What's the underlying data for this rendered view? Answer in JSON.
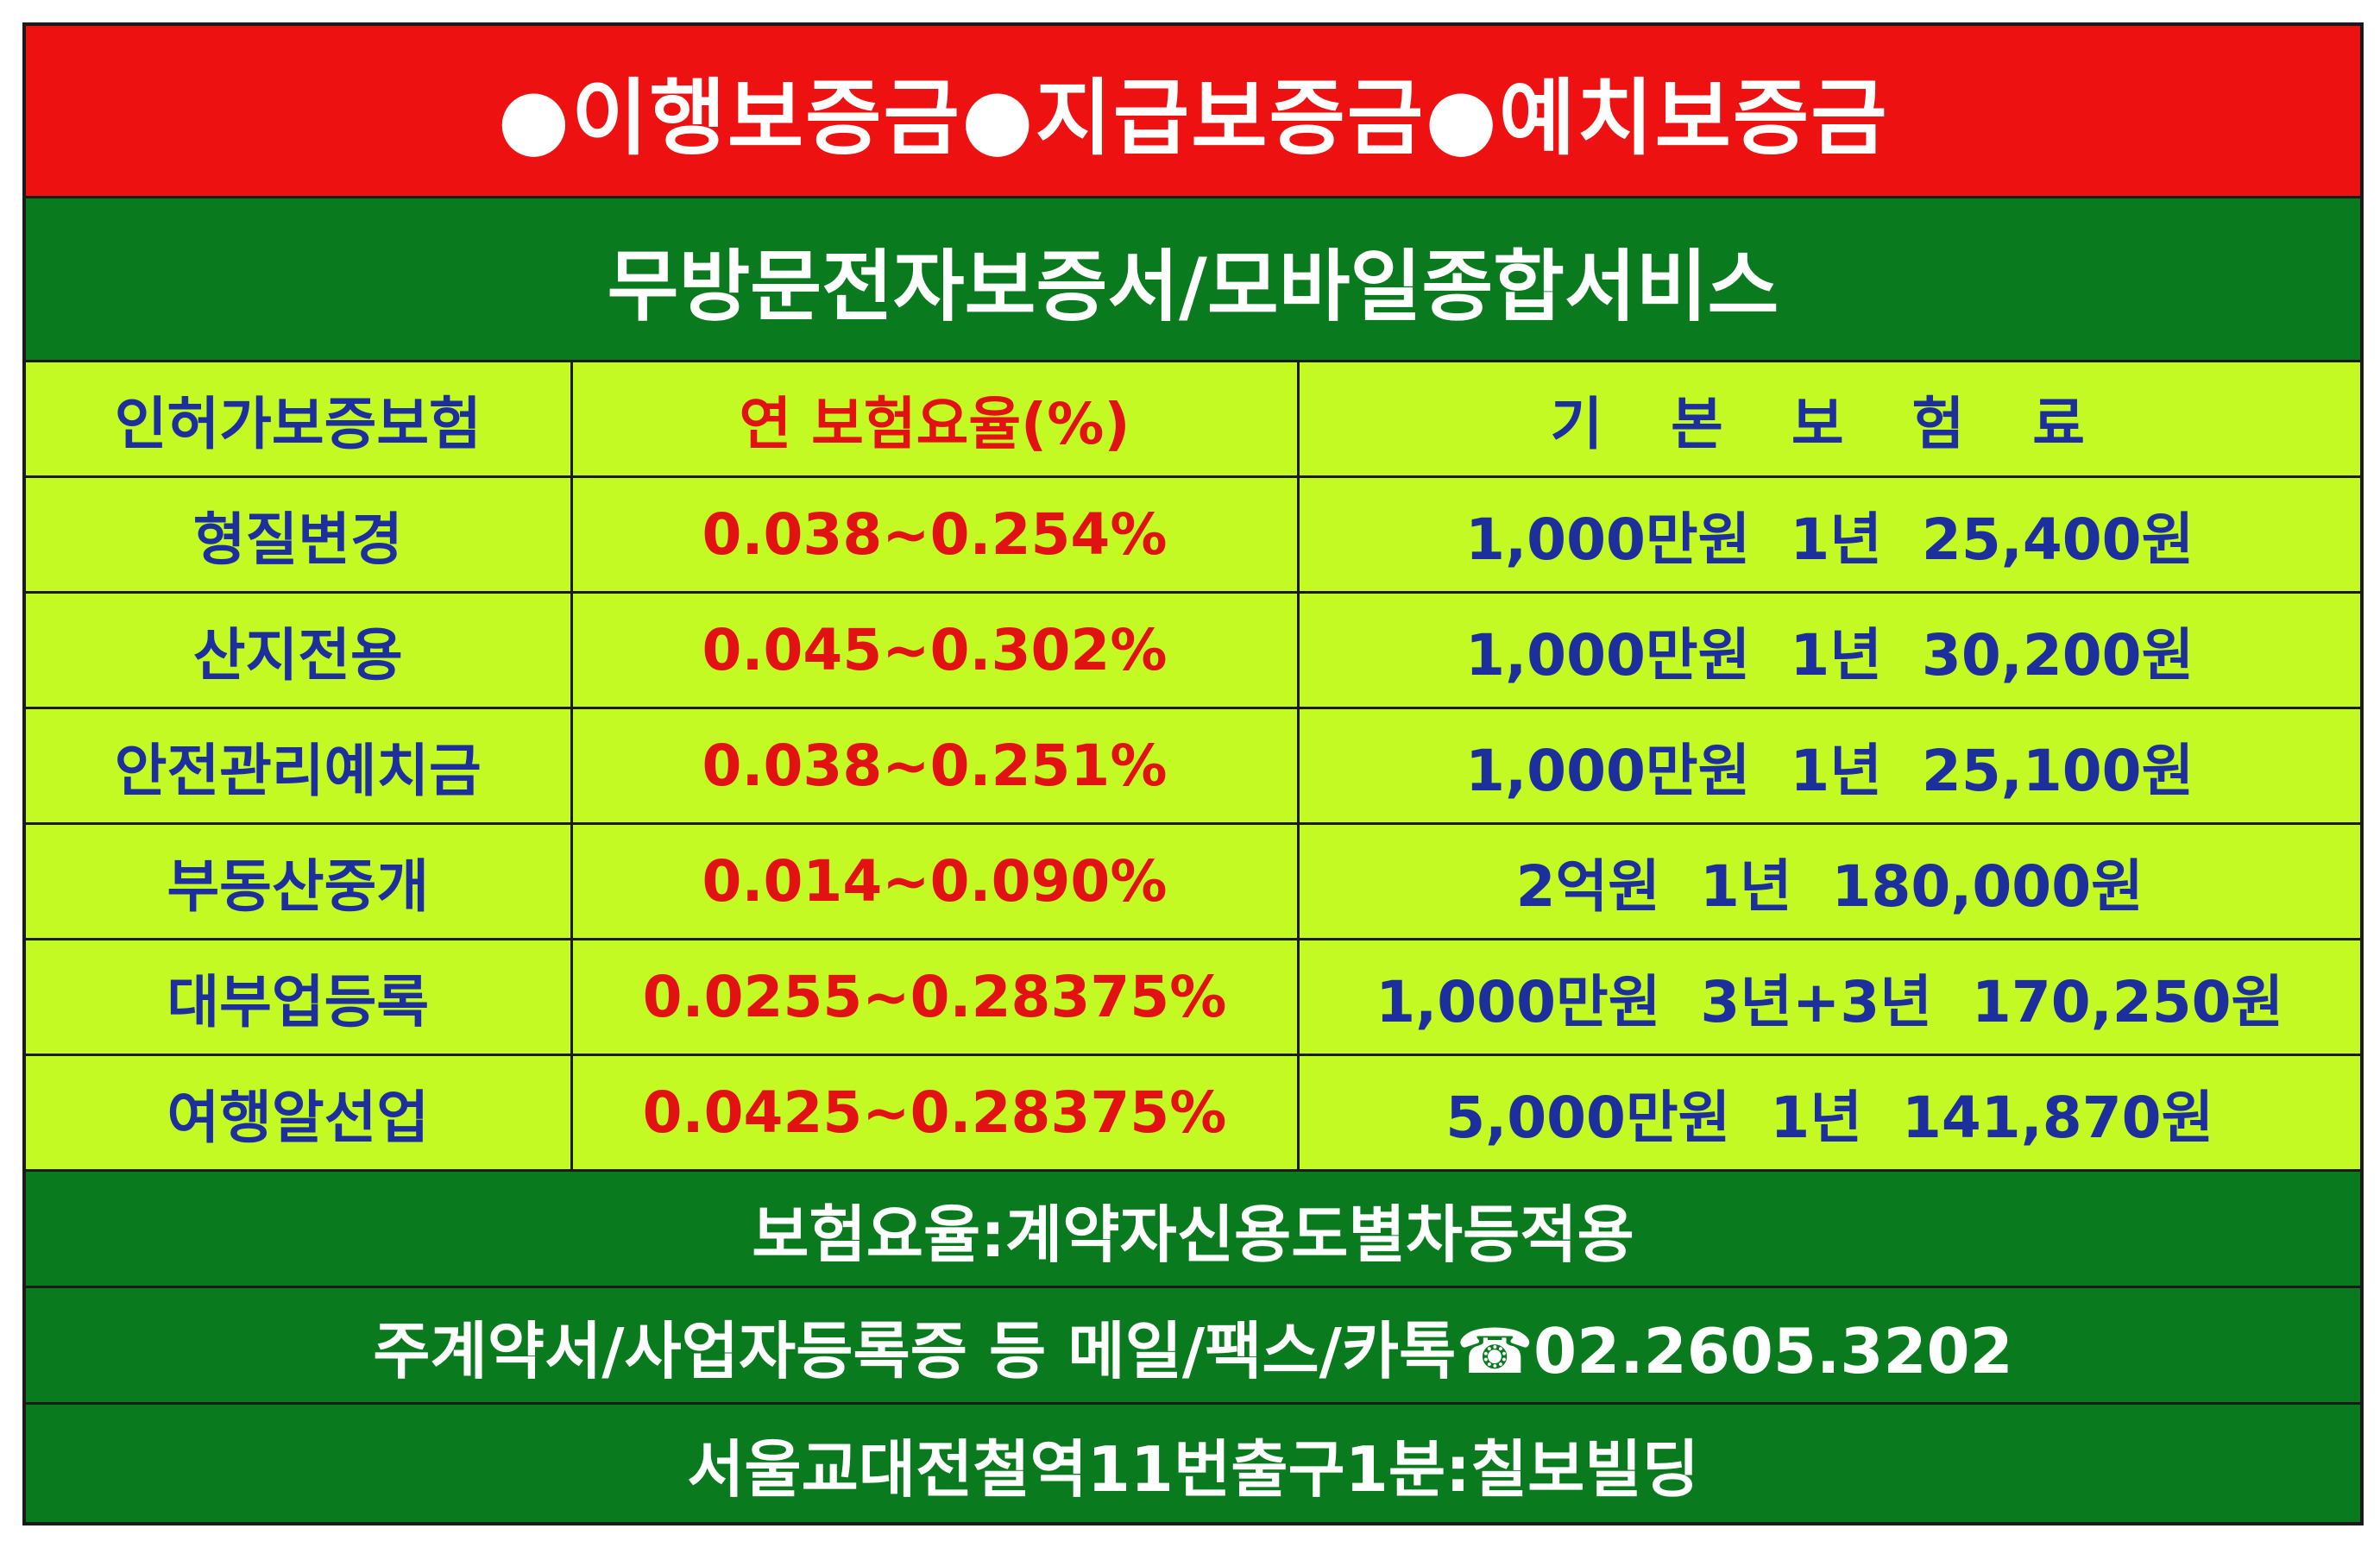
{
  "banner": {
    "segments": [
      "●이행보증금",
      "●지급보증금",
      "●예치보증금"
    ]
  },
  "subtitle": "무방문전자보증서/모바일종합서비스",
  "table": {
    "headers": {
      "type": "인허가보증보험",
      "rate": "연 보험요율(%)",
      "premium": "기 본 보 험 료"
    },
    "rows": [
      {
        "type": "형질변경",
        "rate": "0.038~0.254%",
        "premium": "1,000만원  1년  25,400원"
      },
      {
        "type": "산지전용",
        "rate": "0.045~0.302%",
        "premium": "1,000만원  1년  30,200원"
      },
      {
        "type": "안전관리예치금",
        "rate": "0.038~0.251%",
        "premium": "1,000만원  1년  25,100원"
      },
      {
        "type": "부동산중개",
        "rate": "0.014~0.090%",
        "premium": "2억원  1년  180,000원"
      },
      {
        "type": "대부업등록",
        "rate": "0.0255~0.28375%",
        "premium": "1,000만원  3년+3년  170,250원"
      },
      {
        "type": "여행알선업",
        "rate": "0.0425~0.28375%",
        "premium": "5,000만원  1년  141,870원"
      }
    ]
  },
  "footer": {
    "rate_note": "보험요율:계약자신용도별차등적용",
    "contact": "주계약서/사업자등록증 등 메일/팩스/카톡☎02.2605.3202",
    "location": "서울교대전철역11번출구1분:칠보빌딩"
  },
  "colors": {
    "banner_bg": "#ee1111",
    "band_bg": "#0a7a1e",
    "table_bg": "#c3fa24",
    "name_text": "#1c2f9c",
    "rate_text": "#e31212"
  }
}
